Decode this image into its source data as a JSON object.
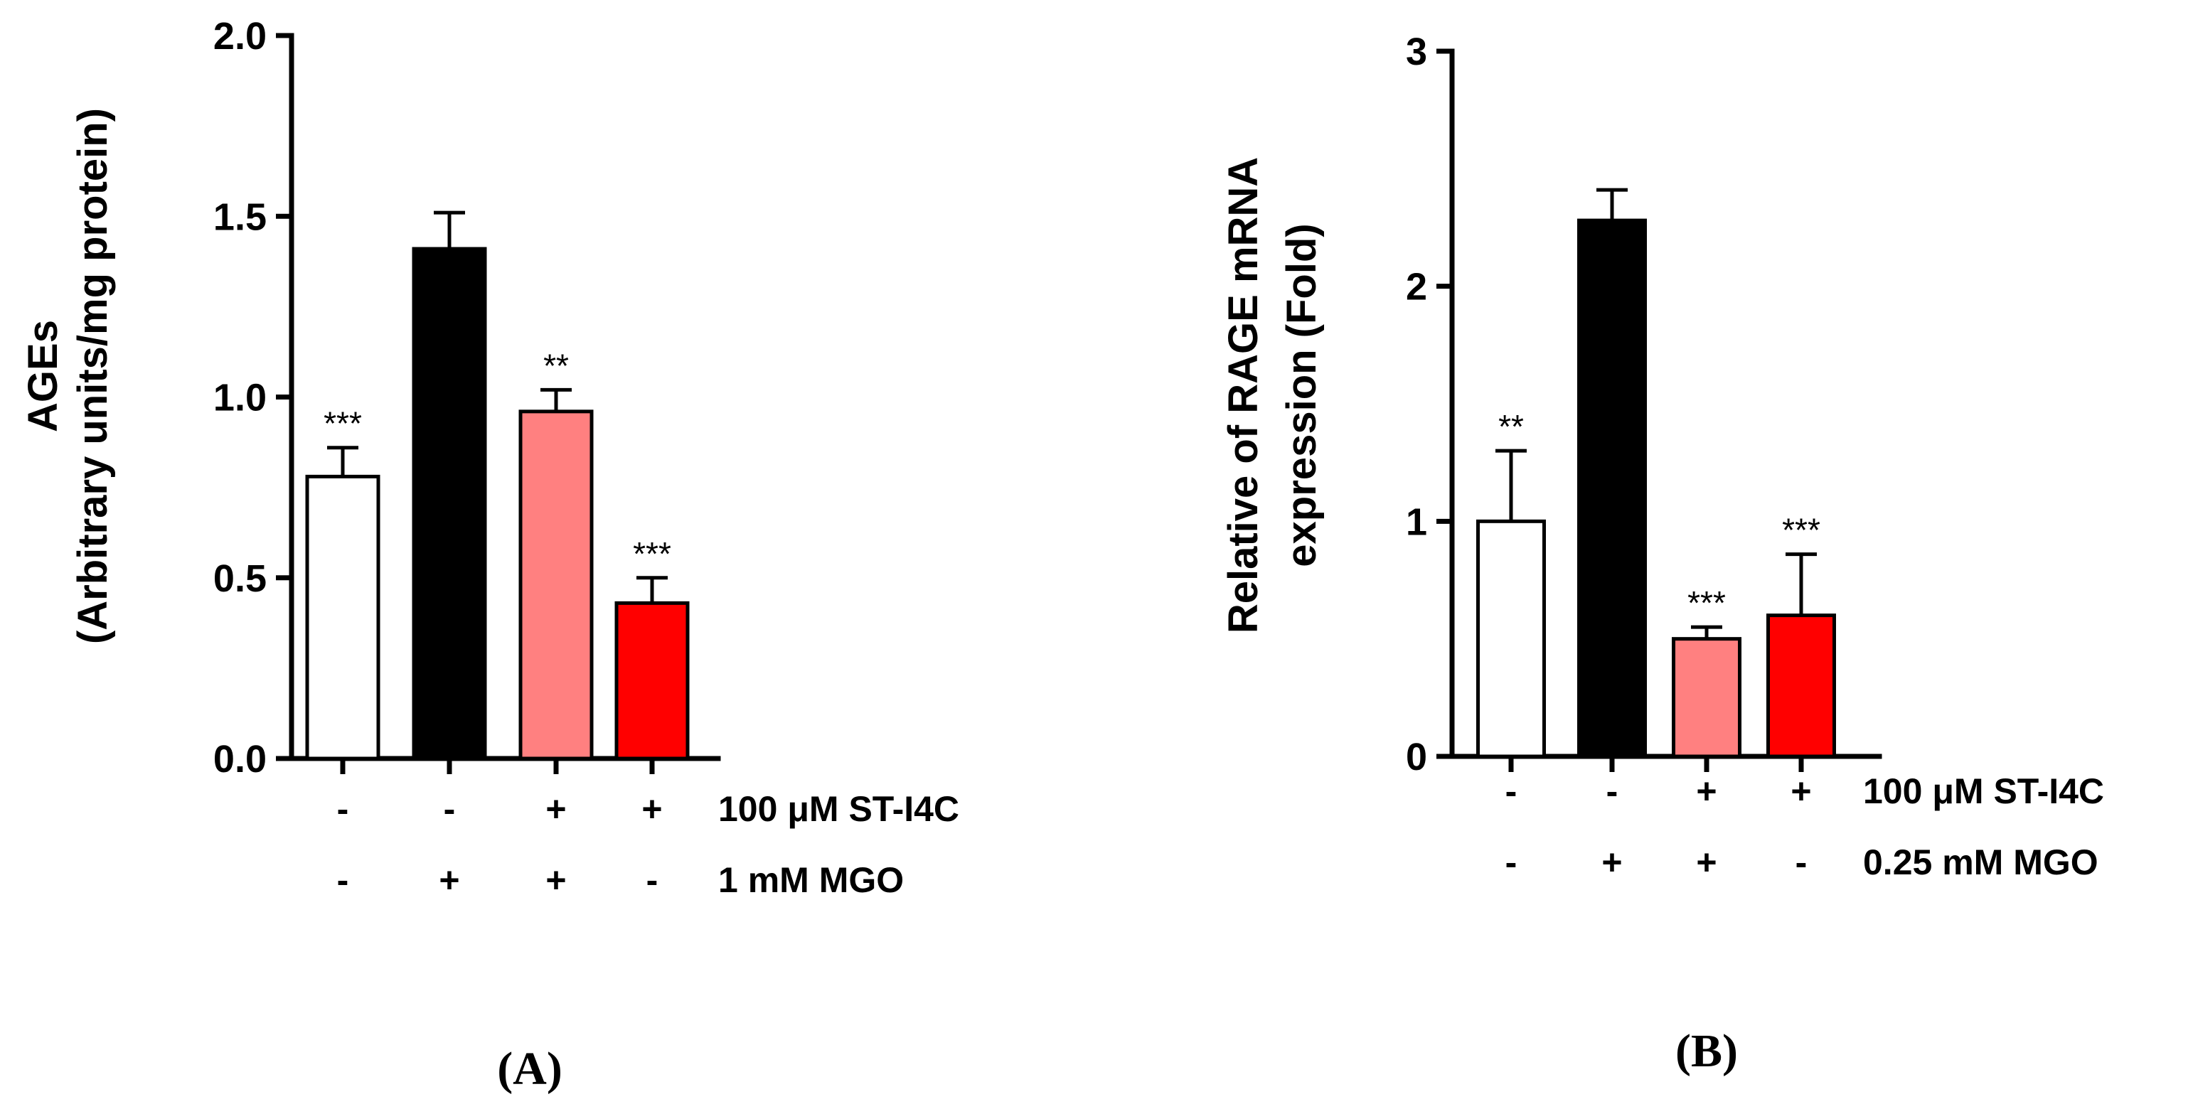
{
  "chart_data": [
    {
      "panel": "A",
      "type": "bar",
      "panel_label": "(A)",
      "ylabel_lines": [
        "AGEs",
        "(Arbitrary units/mg protein)"
      ],
      "ylim": [
        0,
        2.0
      ],
      "yticks": [
        0.0,
        0.5,
        1.0,
        1.5,
        2.0
      ],
      "ytick_labels": [
        "0.0",
        "0.5",
        "1.0",
        "1.5",
        "2.0"
      ],
      "grid": false,
      "bars": [
        {
          "value": 0.78,
          "error": 0.08,
          "color": "#ffffff",
          "sig": "***"
        },
        {
          "value": 1.41,
          "error": 0.1,
          "color": "#000000",
          "sig": ""
        },
        {
          "value": 0.96,
          "error": 0.06,
          "color": "#ff8080",
          "sig": "**"
        },
        {
          "value": 0.43,
          "error": 0.07,
          "color": "#ff0000",
          "sig": "***"
        }
      ],
      "conditions": [
        {
          "label": "100 μM ST-I4C",
          "signs": [
            "-",
            "-",
            "+",
            "+"
          ]
        },
        {
          "label": "1 mM MGO",
          "signs": [
            "-",
            "+",
            "+",
            "-"
          ]
        }
      ]
    },
    {
      "panel": "B",
      "type": "bar",
      "panel_label": "(B)",
      "ylabel_lines": [
        "Relative of RAGE mRNA",
        "expression (Fold)"
      ],
      "ylim": [
        0,
        3
      ],
      "yticks": [
        0,
        1,
        2,
        3
      ],
      "ytick_labels": [
        "0",
        "1",
        "2",
        "3"
      ],
      "grid": false,
      "bars": [
        {
          "value": 1.0,
          "error": 0.3,
          "color": "#ffffff",
          "sig": "**"
        },
        {
          "value": 2.28,
          "error": 0.13,
          "color": "#000000",
          "sig": ""
        },
        {
          "value": 0.5,
          "error": 0.05,
          "color": "#ff8080",
          "sig": "***"
        },
        {
          "value": 0.6,
          "error": 0.26,
          "color": "#ff0000",
          "sig": "***"
        }
      ],
      "conditions": [
        {
          "label": "100 μM ST-I4C",
          "signs": [
            "-",
            "-",
            "+",
            "+"
          ]
        },
        {
          "label": "0.25 mM MGO",
          "signs": [
            "-",
            "+",
            "+",
            "-"
          ]
        }
      ]
    }
  ]
}
